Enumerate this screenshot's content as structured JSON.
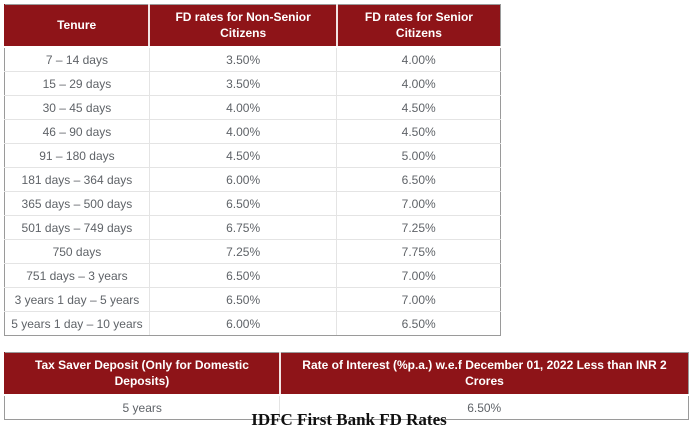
{
  "caption": "IDFC First Bank FD Rates",
  "colors": {
    "header_bg": "#8e1418",
    "header_text": "#ffffff",
    "cell_text": "#5f6368",
    "inner_border": "#e4e4e4",
    "outer_border": "#9a9a9a"
  },
  "fd_table": {
    "headers": [
      "Tenure",
      "FD rates for Non-Senior Citizens",
      "FD rates for Senior Citizens"
    ],
    "rows": [
      [
        "7 – 14 days",
        "3.50%",
        "4.00%"
      ],
      [
        "15 – 29 days",
        "3.50%",
        "4.00%"
      ],
      [
        "30 – 45 days",
        "4.00%",
        "4.50%"
      ],
      [
        "46 – 90 days",
        "4.00%",
        "4.50%"
      ],
      [
        "91 – 180 days",
        "4.50%",
        "5.00%"
      ],
      [
        "181 days – 364 days",
        "6.00%",
        "6.50%"
      ],
      [
        "365 days – 500 days",
        "6.50%",
        "7.00%"
      ],
      [
        "501 days – 749 days",
        "6.75%",
        "7.25%"
      ],
      [
        "750 days",
        "7.25%",
        "7.75%"
      ],
      [
        "751 days – 3 years",
        "6.50%",
        "7.00%"
      ],
      [
        "3 years 1 day – 5 years",
        "6.50%",
        "7.00%"
      ],
      [
        "5 years 1 day – 10 years",
        "6.00%",
        "6.50%"
      ]
    ]
  },
  "tax_saver_table": {
    "headers": [
      "Tax Saver Deposit (Only for Domestic Deposits)",
      "Rate of Interest (%p.a.) w.e.f December 01, 2022 Less than INR 2 Crores"
    ],
    "rows": [
      [
        "5 years",
        "6.50%"
      ]
    ]
  }
}
